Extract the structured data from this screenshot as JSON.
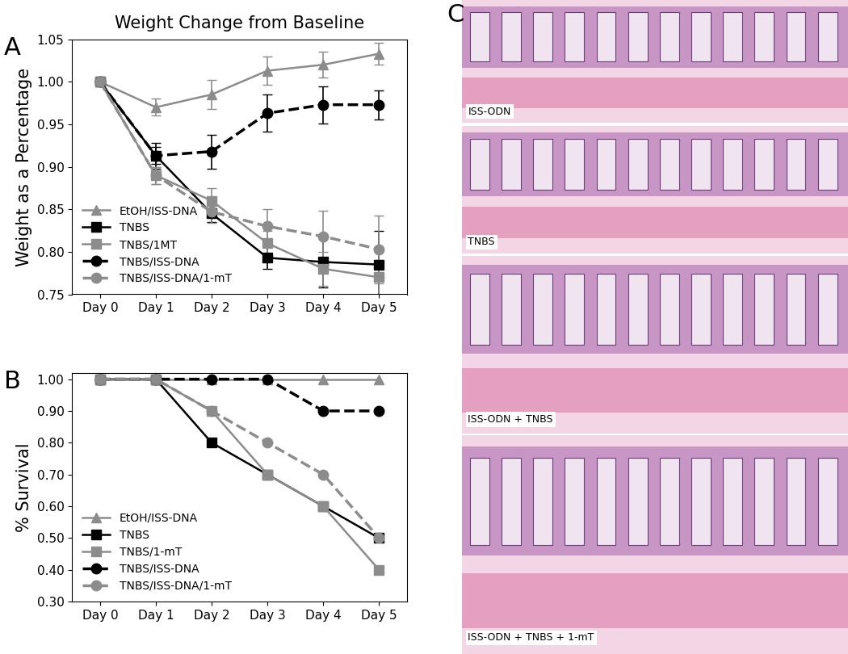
{
  "chart_data": [
    {
      "type": "line",
      "annotations": [
        "A"
      ],
      "title": "Weight Change from Baseline",
      "y_label": "Weight as a Percentage",
      "categories": [
        "Day 0",
        "Day 1",
        "Day 2",
        "Day 3",
        "Day 4",
        "Day 5"
      ],
      "ylim": [
        0.75,
        1.05
      ],
      "yticks": [
        {
          "value": 0.75,
          "label": "0.75"
        },
        {
          "value": 0.8,
          "label": "0.80"
        },
        {
          "value": 0.85,
          "label": "0.85"
        },
        {
          "value": 0.9,
          "label": "0.90"
        },
        {
          "value": 0.95,
          "label": "0.95"
        },
        {
          "value": 1.0,
          "label": "1.00"
        },
        {
          "value": 1.05,
          "label": "1.05"
        }
      ],
      "legend": "lower left",
      "series": [
        {
          "name": "EtOH/ISS-DNA",
          "color": "#8c8c8c",
          "marker": "triangle",
          "line_style": "solid",
          "values": [
            1.0,
            0.97,
            0.985,
            1.013,
            1.02,
            1.033
          ],
          "errors": [
            0,
            0.01,
            0.017,
            0.017,
            0.015,
            0.013
          ]
        },
        {
          "name": "TNBS",
          "color": "#000000",
          "marker": "square",
          "line_style": "solid",
          "values": [
            1.0,
            0.913,
            0.845,
            0.793,
            0.788,
            0.785
          ],
          "errors": [
            0,
            0.015,
            0.01,
            0.013,
            0.03,
            0.04
          ]
        },
        {
          "name": "TNBS/1MT",
          "color": "#8c8c8c",
          "marker": "square",
          "line_style": "solid",
          "values": [
            1.0,
            0.89,
            0.86,
            0.81,
            0.78,
            0.77
          ],
          "errors": [
            0,
            0.01,
            0.015,
            0.015,
            0.02,
            0.02
          ]
        },
        {
          "name": "TNBS/ISS-DNA",
          "color": "#000000",
          "marker": "circle",
          "line_style": "dashed",
          "values": [
            1.0,
            0.913,
            0.918,
            0.963,
            0.973,
            0.973
          ],
          "errors": [
            0,
            0.01,
            0.02,
            0.022,
            0.022,
            0.017
          ]
        },
        {
          "name": "TNBS/ISS-DNA/1-mT",
          "color": "#8c8c8c",
          "marker": "circle",
          "line_style": "dashed",
          "values": [
            1.0,
            0.89,
            0.847,
            0.83,
            0.818,
            0.803
          ],
          "errors": [
            0,
            0.01,
            0.013,
            0.02,
            0.03,
            0.04
          ]
        }
      ]
    },
    {
      "type": "line",
      "annotations": [
        "B"
      ],
      "y_label": "% Survival",
      "categories": [
        "Day 0",
        "Day 1",
        "Day 2",
        "Day 3",
        "Day 4",
        "Day 5"
      ],
      "ylim": [
        0.3,
        1.02
      ],
      "yticks": [
        {
          "value": 0.3,
          "label": "0.30"
        },
        {
          "value": 0.4,
          "label": "0.40"
        },
        {
          "value": 0.5,
          "label": "0.50"
        },
        {
          "value": 0.6,
          "label": "0.60"
        },
        {
          "value": 0.7,
          "label": "0.70"
        },
        {
          "value": 0.8,
          "label": "0.80"
        },
        {
          "value": 0.9,
          "label": "0.90"
        },
        {
          "value": 1.0,
          "label": "1.00"
        }
      ],
      "legend": "lower left",
      "series": [
        {
          "name": "EtOH/ISS-DNA",
          "color": "#8c8c8c",
          "marker": "triangle",
          "line_style": "solid",
          "values": [
            1.0,
            1.0,
            1.0,
            1.0,
            1.0,
            1.0
          ]
        },
        {
          "name": "TNBS",
          "color": "#000000",
          "marker": "square",
          "line_style": "solid",
          "values": [
            1.0,
            1.0,
            0.8,
            0.7,
            0.6,
            0.5
          ]
        },
        {
          "name": "TNBS/1-mT",
          "color": "#8c8c8c",
          "marker": "square",
          "line_style": "solid",
          "values": [
            1.0,
            1.0,
            0.9,
            0.7,
            0.6,
            0.4
          ]
        },
        {
          "name": "TNBS/ISS-DNA",
          "color": "#000000",
          "marker": "circle",
          "line_style": "dashed",
          "values": [
            1.0,
            1.0,
            1.0,
            1.0,
            0.9,
            0.9
          ]
        },
        {
          "name": "TNBS/ISS-DNA/1-mT",
          "color": "#8c8c8c",
          "marker": "circle",
          "line_style": "dashed",
          "values": [
            1.0,
            1.0,
            0.9,
            0.8,
            0.7,
            0.5
          ]
        }
      ]
    }
  ],
  "panel_c": {
    "annotations": [
      "C"
    ],
    "image_labels": [
      "ISS-ODN",
      "TNBS",
      "ISS-ODN + TNBS",
      "ISS-ODN + TNBS + 1-mT"
    ]
  }
}
